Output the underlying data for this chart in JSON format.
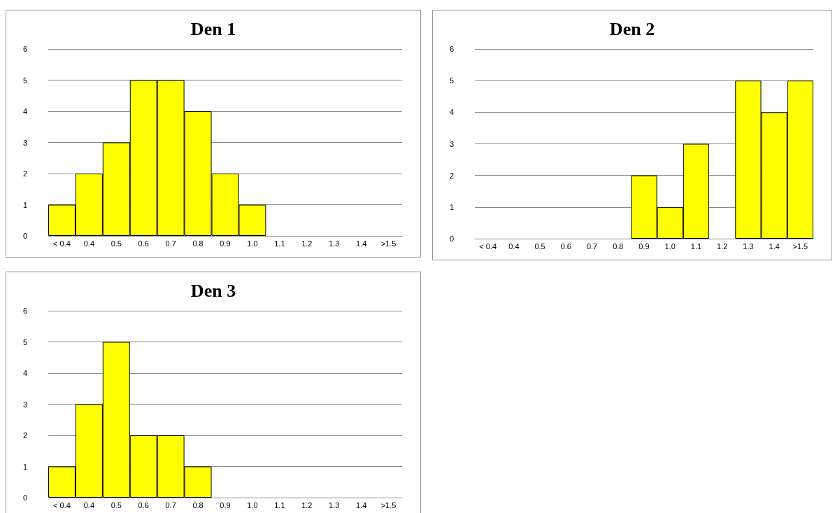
{
  "chart_data": [
    {
      "type": "bar",
      "title": "Den 1",
      "categories": [
        "< 0.4",
        "0.4",
        "0.5",
        "0.6",
        "0.7",
        "0.8",
        "0.9",
        "1.0",
        "1.1",
        "1.2",
        "1.3",
        "1.4",
        ">1.5"
      ],
      "values": [
        1,
        2,
        3,
        5,
        5,
        4,
        2,
        1,
        0,
        0,
        0,
        0,
        0
      ],
      "color": "#ffff00",
      "ylim": [
        0,
        6
      ],
      "yticks": [
        0,
        1,
        2,
        3,
        4,
        5,
        6
      ],
      "grid": "y"
    },
    {
      "type": "bar",
      "title": "Den 2",
      "categories": [
        "< 0.4",
        "0.4",
        "0.5",
        "0.6",
        "0.7",
        "0.8",
        "0.9",
        "1.0",
        "1.1",
        "1.2",
        "1.3",
        "1.4",
        ">1.5"
      ],
      "values": [
        0,
        0,
        0,
        0,
        0,
        0,
        2,
        1,
        3,
        0,
        5,
        4,
        5
      ],
      "color": "#ffff00",
      "ylim": [
        0,
        6
      ],
      "yticks": [
        0,
        1,
        2,
        3,
        4,
        5,
        6
      ],
      "grid": "y"
    },
    {
      "type": "bar",
      "title": "Den 3",
      "categories": [
        "< 0.4",
        "0.4",
        "0.5",
        "0.6",
        "0.7",
        "0.8",
        "0.9",
        "1.0",
        "1.1",
        "1.2",
        "1.3",
        "1.4",
        ">1.5"
      ],
      "values": [
        1,
        3,
        5,
        2,
        2,
        1,
        0,
        0,
        0,
        0,
        0,
        0,
        0
      ],
      "color": "#ffff00",
      "ylim": [
        0,
        6
      ],
      "yticks": [
        0,
        1,
        2,
        3,
        4,
        5,
        6
      ],
      "grid": "y"
    }
  ]
}
